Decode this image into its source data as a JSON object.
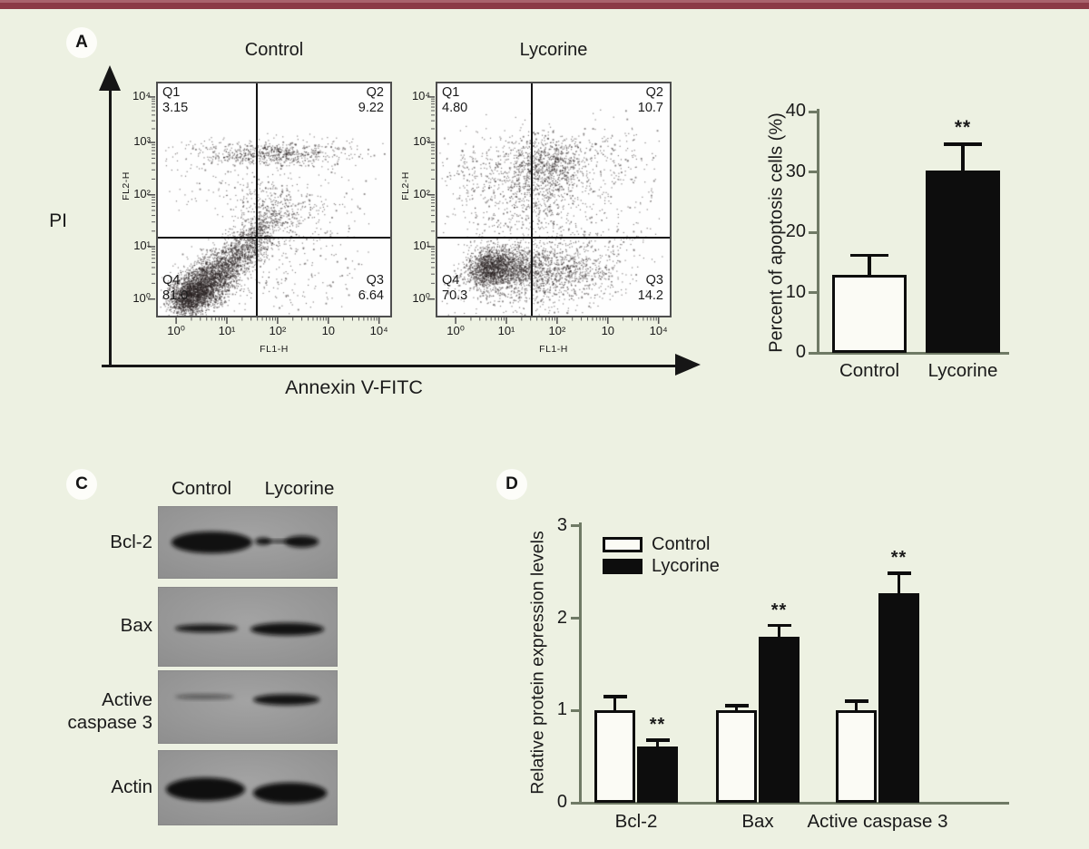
{
  "page": {
    "background": "#edf1e2",
    "accent_bar_color": "#8b3a46",
    "accent_bar_highlight": "#a9636d"
  },
  "panel_a": {
    "label": "A",
    "y_axis_label": "PI",
    "x_axis_label": "Annexin V-FITC",
    "plots": [
      {
        "title": "Control",
        "x_label": "FL1-H",
        "y_label": "FL2-H",
        "x_ticks": [
          "10⁰",
          "10¹",
          "10²",
          "10",
          "10⁴"
        ],
        "y_ticks": [
          "10⁴",
          "10³",
          "10²",
          "10¹",
          "10⁰"
        ],
        "quadrants": [
          {
            "id": "Q1",
            "value": "3.15",
            "pos": "tl"
          },
          {
            "id": "Q2",
            "value": "9.22",
            "pos": "tr"
          },
          {
            "id": "Q3",
            "value": "6.64",
            "pos": "br"
          },
          {
            "id": "Q4",
            "value": "81.0",
            "pos": "bl"
          }
        ],
        "gate_x": 0.425,
        "gate_y_top": 0.665,
        "clusters": [
          [
            0.12,
            0.07,
            0.04,
            0.035,
            900
          ],
          [
            0.17,
            0.11,
            0.05,
            0.04,
            1100
          ],
          [
            0.22,
            0.155,
            0.055,
            0.045,
            900
          ],
          [
            0.28,
            0.205,
            0.05,
            0.04,
            600
          ],
          [
            0.335,
            0.26,
            0.045,
            0.04,
            380
          ],
          [
            0.39,
            0.31,
            0.04,
            0.04,
            260
          ],
          [
            0.435,
            0.35,
            0.035,
            0.045,
            220
          ],
          [
            0.47,
            0.41,
            0.05,
            0.06,
            190
          ],
          [
            0.53,
            0.47,
            0.12,
            0.07,
            330
          ],
          [
            0.5,
            0.7,
            0.1,
            0.025,
            340
          ],
          [
            0.36,
            0.695,
            0.14,
            0.028,
            210
          ],
          [
            0.68,
            0.7,
            0.11,
            0.04,
            150
          ],
          [
            0.25,
            0.6,
            0.12,
            0.09,
            90
          ],
          [
            0.65,
            0.3,
            0.15,
            0.12,
            140
          ],
          [
            0.55,
            0.12,
            0.15,
            0.06,
            90
          ]
        ]
      },
      {
        "title": "Lycorine",
        "x_label": "FL1-H",
        "y_label": "FL2-H",
        "x_ticks": [
          "10⁰",
          "10¹",
          "10²",
          "10",
          "10⁴"
        ],
        "y_ticks": [
          "10⁴",
          "10³",
          "10²",
          "10¹",
          "10⁰"
        ],
        "quadrants": [
          {
            "id": "Q1",
            "value": "4.80",
            "pos": "tl"
          },
          {
            "id": "Q2",
            "value": "10.7",
            "pos": "tr"
          },
          {
            "id": "Q3",
            "value": "14.2",
            "pos": "br"
          },
          {
            "id": "Q4",
            "value": "70.3",
            "pos": "bl"
          }
        ],
        "gate_x": 0.405,
        "gate_y_top": 0.665,
        "clusters": [
          [
            0.22,
            0.2,
            0.05,
            0.04,
            1000
          ],
          [
            0.28,
            0.22,
            0.07,
            0.045,
            800
          ],
          [
            0.38,
            0.2,
            0.09,
            0.05,
            500
          ],
          [
            0.5,
            0.18,
            0.1,
            0.06,
            400
          ],
          [
            0.62,
            0.18,
            0.1,
            0.06,
            230
          ],
          [
            0.47,
            0.66,
            0.09,
            0.06,
            650
          ],
          [
            0.42,
            0.6,
            0.13,
            0.1,
            450
          ],
          [
            0.45,
            0.45,
            0.1,
            0.1,
            260
          ],
          [
            0.25,
            0.52,
            0.12,
            0.12,
            200
          ],
          [
            0.15,
            0.6,
            0.08,
            0.1,
            120
          ],
          [
            0.75,
            0.55,
            0.12,
            0.12,
            130
          ],
          [
            0.7,
            0.3,
            0.12,
            0.08,
            150
          ],
          [
            0.3,
            0.08,
            0.15,
            0.05,
            200
          ],
          [
            0.75,
            0.72,
            0.1,
            0.06,
            80
          ]
        ]
      }
    ]
  },
  "panel_c": {
    "label": "C",
    "column_headers": [
      "Control",
      "Lycorine"
    ],
    "rows": [
      {
        "label": "Bcl-2",
        "label_lines": [
          "Bcl-2"
        ],
        "bands": [
          [
            0.3,
            0.5,
            0.225,
            0.15,
            0.97
          ],
          [
            0.585,
            0.485,
            0.045,
            0.05,
            0.92
          ],
          [
            0.695,
            0.485,
            0.115,
            0.02,
            0.85
          ],
          [
            0.8,
            0.49,
            0.095,
            0.08,
            0.95
          ]
        ]
      },
      {
        "label": "Bax",
        "label_lines": [
          "Bax"
        ],
        "bands": [
          [
            0.27,
            0.52,
            0.175,
            0.05,
            0.93
          ],
          [
            0.72,
            0.53,
            0.205,
            0.08,
            0.96
          ]
        ]
      },
      {
        "label": "Active caspase 3",
        "label_lines": [
          "Active",
          "caspase 3"
        ],
        "bands": [
          [
            0.26,
            0.36,
            0.165,
            0.032,
            0.5
          ],
          [
            0.715,
            0.4,
            0.185,
            0.075,
            0.95
          ]
        ]
      },
      {
        "label": "Actin",
        "label_lines": [
          "Actin"
        ],
        "bands": [
          [
            0.265,
            0.52,
            0.22,
            0.155,
            0.98
          ],
          [
            0.735,
            0.57,
            0.205,
            0.14,
            0.98
          ]
        ]
      }
    ]
  },
  "panel_d": {
    "label": "D"
  },
  "chart_data": [
    {
      "id": "apoptosis_percentage",
      "type": "bar",
      "title": "",
      "xlabel": "",
      "ylabel": "Percent of apoptosis cells (%)",
      "categories": [
        "Control",
        "Lycorine"
      ],
      "values": [
        13.0,
        30.3
      ],
      "errors": [
        3.2,
        4.3
      ],
      "significance": [
        "",
        "**"
      ],
      "bar_fills": [
        "#fbfbf5",
        "#0d0d0d"
      ],
      "ylim": [
        0,
        40
      ],
      "yticks": [
        0,
        10,
        20,
        30,
        40
      ],
      "grid": false,
      "legend_position": "none"
    },
    {
      "id": "relative_protein_expression",
      "type": "bar",
      "title": "",
      "xlabel": "",
      "ylabel": "Relative protein expression levels",
      "categories": [
        "Bcl-2",
        "Bax",
        "Active caspase 3"
      ],
      "series": [
        {
          "name": "Control",
          "fill": "#fbfbf5",
          "values": [
            1.0,
            1.0,
            1.0
          ],
          "errors": [
            0.15,
            0.05,
            0.1
          ],
          "significance": [
            "",
            "",
            ""
          ]
        },
        {
          "name": "Lycorine",
          "fill": "#0d0d0d",
          "values": [
            0.61,
            1.8,
            2.27
          ],
          "errors": [
            0.07,
            0.12,
            0.22
          ],
          "significance": [
            "**",
            "**",
            "**"
          ]
        }
      ],
      "ylim": [
        0,
        3
      ],
      "yticks": [
        0,
        1,
        2,
        3
      ],
      "grid": false,
      "legend_position": "upper-left"
    },
    {
      "id": "flow_cytometry_control",
      "type": "scatter",
      "title": "Control",
      "xlabel": "FL1-H",
      "ylabel": "FL2-H",
      "scale": "log",
      "xlim": [
        "1e0",
        "1e4"
      ],
      "ylim": [
        "1e0",
        "1e4"
      ],
      "quadrant_percentages": {
        "Q1": 3.15,
        "Q2": 9.22,
        "Q3": 6.64,
        "Q4": 81.0
      }
    },
    {
      "id": "flow_cytometry_lycorine",
      "type": "scatter",
      "title": "Lycorine",
      "xlabel": "FL1-H",
      "ylabel": "FL2-H",
      "scale": "log",
      "xlim": [
        "1e0",
        "1e4"
      ],
      "ylim": [
        "1e0",
        "1e4"
      ],
      "quadrant_percentages": {
        "Q1": 4.8,
        "Q2": 10.7,
        "Q3": 14.2,
        "Q4": 70.3
      }
    }
  ]
}
